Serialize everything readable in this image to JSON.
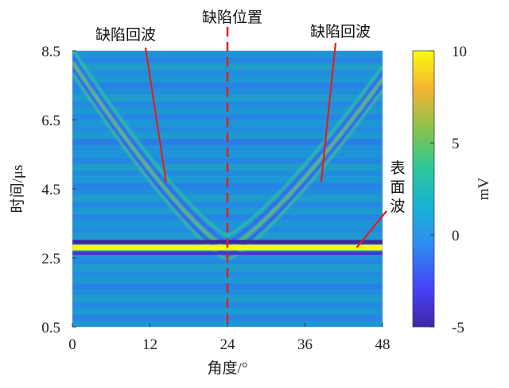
{
  "chart_data": {
    "type": "heatmap",
    "xlabel": "角度/°",
    "ylabel": "时间/μs",
    "x_ticks": [
      0,
      12,
      24,
      36,
      48
    ],
    "y_ticks": [
      0.5,
      2.5,
      4.5,
      6.5,
      8.5
    ],
    "xlim": [
      0,
      48
    ],
    "ylim": [
      0.5,
      8.5
    ],
    "colorbar": {
      "label": "mV",
      "ticks": [
        -5,
        0,
        5,
        10
      ],
      "range": [
        -5,
        10
      ]
    },
    "features": [
      {
        "name": "surface_wave",
        "type": "horizontal_band",
        "time": 2.8,
        "value_mV": 10
      },
      {
        "name": "defect_echo",
        "type": "v_curve",
        "vertex_angle": 24,
        "vertex_time": 2.6,
        "edge_time_at_0": 8.0,
        "edge_time_at_48": 7.5,
        "value_mV": 4
      }
    ],
    "annotations": [
      {
        "text": "缺陷回波",
        "target_x": 14.5,
        "target_y": 4.7
      },
      {
        "text": "缺陷位置",
        "target_x": 24,
        "target_y": 0.5
      },
      {
        "text": "缺陷回波",
        "target_x": 38.5,
        "target_y": 4.7
      },
      {
        "text": "表面波",
        "target_x": 44,
        "target_y": 2.8
      }
    ]
  },
  "colors": {
    "defect_line": "#e02020",
    "annotation_line": "#e02020",
    "background_field": "#1f78d8",
    "colormap": [
      "#3e26a8",
      "#4743f8",
      "#2d8ef2",
      "#19b3d3",
      "#2ec797",
      "#8bc34a",
      "#f5b433",
      "#f9fb0e"
    ]
  }
}
